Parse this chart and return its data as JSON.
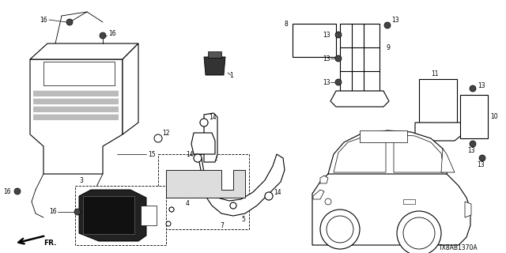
{
  "diagram_id": "TX8AB1370A",
  "background_color": "#ffffff",
  "fig_width": 6.4,
  "fig_height": 3.2,
  "dpi": 100,
  "lc": "#000000",
  "gray": "#888888",
  "darkgray": "#333333"
}
